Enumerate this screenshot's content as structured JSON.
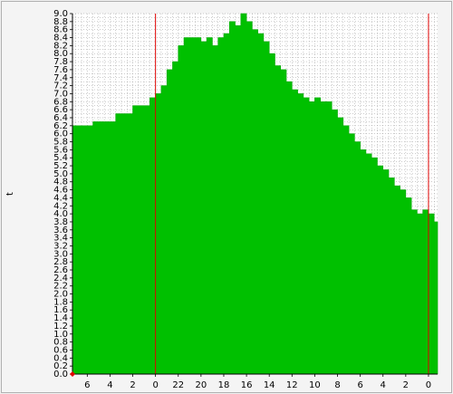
{
  "chart_data": {
    "type": "area",
    "title": "",
    "xlabel": "",
    "ylabel": "t",
    "ylim": [
      0,
      9
    ],
    "y_ticks": [
      "0.0",
      "0.2",
      "0.4",
      "0.6",
      "0.8",
      "1.0",
      "1.2",
      "1.4",
      "1.6",
      "1.8",
      "2.0",
      "2.2",
      "2.4",
      "2.6",
      "2.8",
      "3.0",
      "3.2",
      "3.4",
      "3.6",
      "3.8",
      "4.0",
      "4.2",
      "4.4",
      "4.6",
      "4.8",
      "5.0",
      "5.2",
      "5.4",
      "5.6",
      "5.8",
      "6.0",
      "6.2",
      "6.4",
      "6.6",
      "6.8",
      "7.0",
      "7.2",
      "7.4",
      "7.6",
      "7.8",
      "8.0",
      "8.2",
      "8.4",
      "8.6",
      "8.8",
      "9.0"
    ],
    "x_ticks": [
      {
        "label": "6",
        "hours_ago": 37
      },
      {
        "label": "4",
        "hours_ago": 35
      },
      {
        "label": "2",
        "hours_ago": 33
      },
      {
        "label": "0",
        "hours_ago": 31
      },
      {
        "label": "22",
        "hours_ago": 29
      },
      {
        "label": "20",
        "hours_ago": 27
      },
      {
        "label": "18",
        "hours_ago": 25
      },
      {
        "label": "16",
        "hours_ago": 23
      },
      {
        "label": "14",
        "hours_ago": 21
      },
      {
        "label": "12",
        "hours_ago": 19
      },
      {
        "label": "10",
        "hours_ago": 17
      },
      {
        "label": "8",
        "hours_ago": 15
      },
      {
        "label": "6",
        "hours_ago": 13
      },
      {
        "label": "4",
        "hours_ago": 11
      },
      {
        "label": "2",
        "hours_ago": 9
      },
      {
        "label": "0",
        "hours_ago": 7
      }
    ],
    "x_range": [
      38.3,
      6.2
    ],
    "day_markers_hours_ago": [
      31,
      7
    ],
    "series": [
      {
        "color": "#00c000",
        "x": [
          38.3,
          37.5,
          37,
          36.5,
          36,
          35.5,
          35,
          34.5,
          34,
          33.5,
          33,
          32.5,
          32,
          31.5,
          31,
          30.5,
          30,
          29.5,
          29,
          28.5,
          28,
          27.5,
          27,
          26.5,
          26,
          25.5,
          25,
          24.5,
          24,
          23.5,
          23,
          22.5,
          22,
          21.5,
          21,
          20.5,
          20,
          19.5,
          19,
          18.5,
          18,
          17.5,
          17,
          16.5,
          16,
          15.5,
          15,
          14.5,
          14,
          13.5,
          13,
          12.5,
          12,
          11.5,
          11,
          10.5,
          10,
          9.5,
          9,
          8.5,
          8,
          7.5,
          7,
          6.5,
          6.2
        ],
        "values": [
          6.2,
          6.2,
          6.2,
          6.3,
          6.3,
          6.3,
          6.3,
          6.5,
          6.5,
          6.5,
          6.7,
          6.7,
          6.7,
          6.9,
          7.0,
          7.2,
          7.6,
          7.8,
          8.2,
          8.4,
          8.4,
          8.4,
          8.3,
          8.4,
          8.2,
          8.4,
          8.5,
          8.8,
          8.7,
          9.0,
          8.8,
          8.6,
          8.5,
          8.3,
          8.0,
          7.7,
          7.6,
          7.3,
          7.1,
          7.0,
          6.9,
          6.8,
          6.9,
          6.8,
          6.8,
          6.6,
          6.4,
          6.2,
          6.0,
          5.8,
          5.6,
          5.5,
          5.4,
          5.2,
          5.1,
          4.9,
          4.7,
          4.6,
          4.4,
          4.1,
          4.0,
          4.1,
          4.0,
          3.8,
          3.8
        ]
      }
    ],
    "grid": true,
    "legend": "none"
  }
}
